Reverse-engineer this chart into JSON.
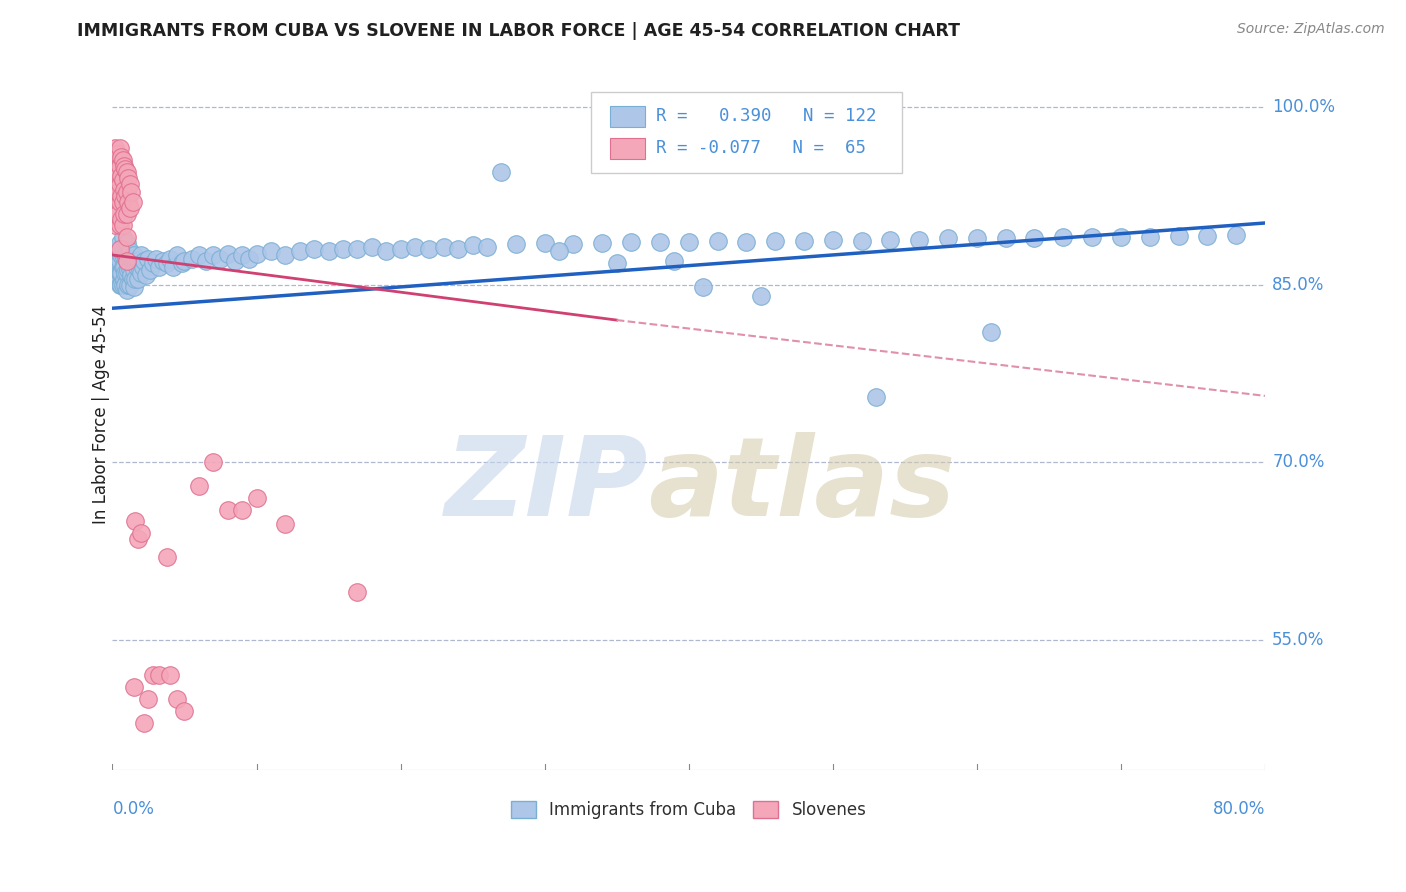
{
  "title": "IMMIGRANTS FROM CUBA VS SLOVENE IN LABOR FORCE | AGE 45-54 CORRELATION CHART",
  "source": "Source: ZipAtlas.com",
  "ylabel": "In Labor Force | Age 45-54",
  "xmin": 0.0,
  "xmax": 0.8,
  "ymin": 0.44,
  "ymax": 1.04,
  "cuba_R": 0.39,
  "cuba_N": 122,
  "slovene_R": -0.077,
  "slovene_N": 65,
  "cuba_color": "#aec6e8",
  "cuba_edge": "#7aafd4",
  "slovene_color": "#f4a7b9",
  "slovene_edge": "#e07090",
  "trend_cuba_color": "#2060c0",
  "trend_slovene_solid_color": "#d04070",
  "trend_slovene_dash_color": "#e090a8",
  "legend_label_cuba": "Immigrants from Cuba",
  "legend_label_slovene": "Slovenes",
  "background_color": "#ffffff",
  "grid_color": "#b0b8d0",
  "title_color": "#202020",
  "axis_label_color": "#4a90d9",
  "ytick_vals": [
    0.55,
    0.7,
    0.85,
    1.0
  ],
  "ytick_labels": [
    "55.0%",
    "70.0%",
    "85.0%",
    "100.0%"
  ],
  "cuba_x": [
    0.002,
    0.003,
    0.003,
    0.004,
    0.004,
    0.005,
    0.005,
    0.005,
    0.005,
    0.006,
    0.006,
    0.006,
    0.007,
    0.007,
    0.007,
    0.007,
    0.008,
    0.008,
    0.008,
    0.009,
    0.009,
    0.009,
    0.01,
    0.01,
    0.01,
    0.01,
    0.011,
    0.011,
    0.011,
    0.012,
    0.012,
    0.012,
    0.013,
    0.013,
    0.014,
    0.014,
    0.015,
    0.015,
    0.015,
    0.016,
    0.016,
    0.017,
    0.018,
    0.018,
    0.019,
    0.02,
    0.02,
    0.021,
    0.022,
    0.023,
    0.025,
    0.026,
    0.028,
    0.03,
    0.032,
    0.035,
    0.038,
    0.04,
    0.042,
    0.045,
    0.048,
    0.05,
    0.055,
    0.06,
    0.065,
    0.07,
    0.075,
    0.08,
    0.085,
    0.09,
    0.095,
    0.1,
    0.11,
    0.12,
    0.13,
    0.14,
    0.15,
    0.16,
    0.17,
    0.18,
    0.19,
    0.2,
    0.21,
    0.22,
    0.23,
    0.24,
    0.25,
    0.26,
    0.28,
    0.3,
    0.32,
    0.34,
    0.36,
    0.38,
    0.4,
    0.42,
    0.44,
    0.46,
    0.48,
    0.5,
    0.52,
    0.54,
    0.56,
    0.58,
    0.6,
    0.62,
    0.64,
    0.66,
    0.68,
    0.7,
    0.72,
    0.74,
    0.76,
    0.78,
    0.53,
    0.61,
    0.45,
    0.39,
    0.27,
    0.31,
    0.35,
    0.41
  ],
  "cuba_y": [
    0.875,
    0.88,
    0.86,
    0.87,
    0.855,
    0.885,
    0.87,
    0.86,
    0.85,
    0.875,
    0.86,
    0.85,
    0.89,
    0.875,
    0.865,
    0.85,
    0.88,
    0.865,
    0.855,
    0.875,
    0.86,
    0.85,
    0.885,
    0.87,
    0.86,
    0.845,
    0.875,
    0.862,
    0.85,
    0.878,
    0.863,
    0.85,
    0.872,
    0.858,
    0.87,
    0.855,
    0.875,
    0.862,
    0.848,
    0.87,
    0.855,
    0.865,
    0.87,
    0.855,
    0.862,
    0.875,
    0.86,
    0.865,
    0.87,
    0.858,
    0.872,
    0.862,
    0.868,
    0.872,
    0.865,
    0.87,
    0.868,
    0.872,
    0.865,
    0.875,
    0.868,
    0.87,
    0.872,
    0.875,
    0.87,
    0.875,
    0.872,
    0.876,
    0.87,
    0.875,
    0.872,
    0.876,
    0.878,
    0.875,
    0.878,
    0.88,
    0.878,
    0.88,
    0.88,
    0.882,
    0.878,
    0.88,
    0.882,
    0.88,
    0.882,
    0.88,
    0.883,
    0.882,
    0.884,
    0.885,
    0.884,
    0.885,
    0.886,
    0.886,
    0.886,
    0.887,
    0.886,
    0.887,
    0.887,
    0.888,
    0.887,
    0.888,
    0.888,
    0.889,
    0.889,
    0.889,
    0.889,
    0.89,
    0.89,
    0.89,
    0.89,
    0.891,
    0.891,
    0.892,
    0.755,
    0.81,
    0.84,
    0.87,
    0.945,
    0.878,
    0.868,
    0.848
  ],
  "slovene_x": [
    0.001,
    0.001,
    0.001,
    0.002,
    0.002,
    0.002,
    0.002,
    0.002,
    0.003,
    0.003,
    0.003,
    0.003,
    0.004,
    0.004,
    0.004,
    0.004,
    0.005,
    0.005,
    0.005,
    0.005,
    0.005,
    0.005,
    0.006,
    0.006,
    0.006,
    0.006,
    0.007,
    0.007,
    0.007,
    0.007,
    0.008,
    0.008,
    0.008,
    0.009,
    0.009,
    0.01,
    0.01,
    0.01,
    0.01,
    0.01,
    0.011,
    0.011,
    0.012,
    0.012,
    0.013,
    0.014,
    0.015,
    0.016,
    0.018,
    0.02,
    0.022,
    0.025,
    0.028,
    0.032,
    0.038,
    0.04,
    0.045,
    0.05,
    0.06,
    0.07,
    0.08,
    0.09,
    0.1,
    0.12,
    0.17
  ],
  "slovene_y": [
    0.96,
    0.945,
    0.93,
    0.965,
    0.95,
    0.935,
    0.92,
    0.9,
    0.96,
    0.94,
    0.925,
    0.91,
    0.96,
    0.945,
    0.928,
    0.91,
    0.965,
    0.95,
    0.935,
    0.92,
    0.9,
    0.88,
    0.958,
    0.942,
    0.925,
    0.905,
    0.955,
    0.938,
    0.92,
    0.9,
    0.95,
    0.93,
    0.91,
    0.948,
    0.925,
    0.945,
    0.928,
    0.91,
    0.89,
    0.87,
    0.94,
    0.92,
    0.935,
    0.915,
    0.928,
    0.92,
    0.51,
    0.65,
    0.635,
    0.64,
    0.48,
    0.5,
    0.52,
    0.52,
    0.62,
    0.52,
    0.5,
    0.49,
    0.68,
    0.7,
    0.66,
    0.66,
    0.67,
    0.648,
    0.59
  ]
}
